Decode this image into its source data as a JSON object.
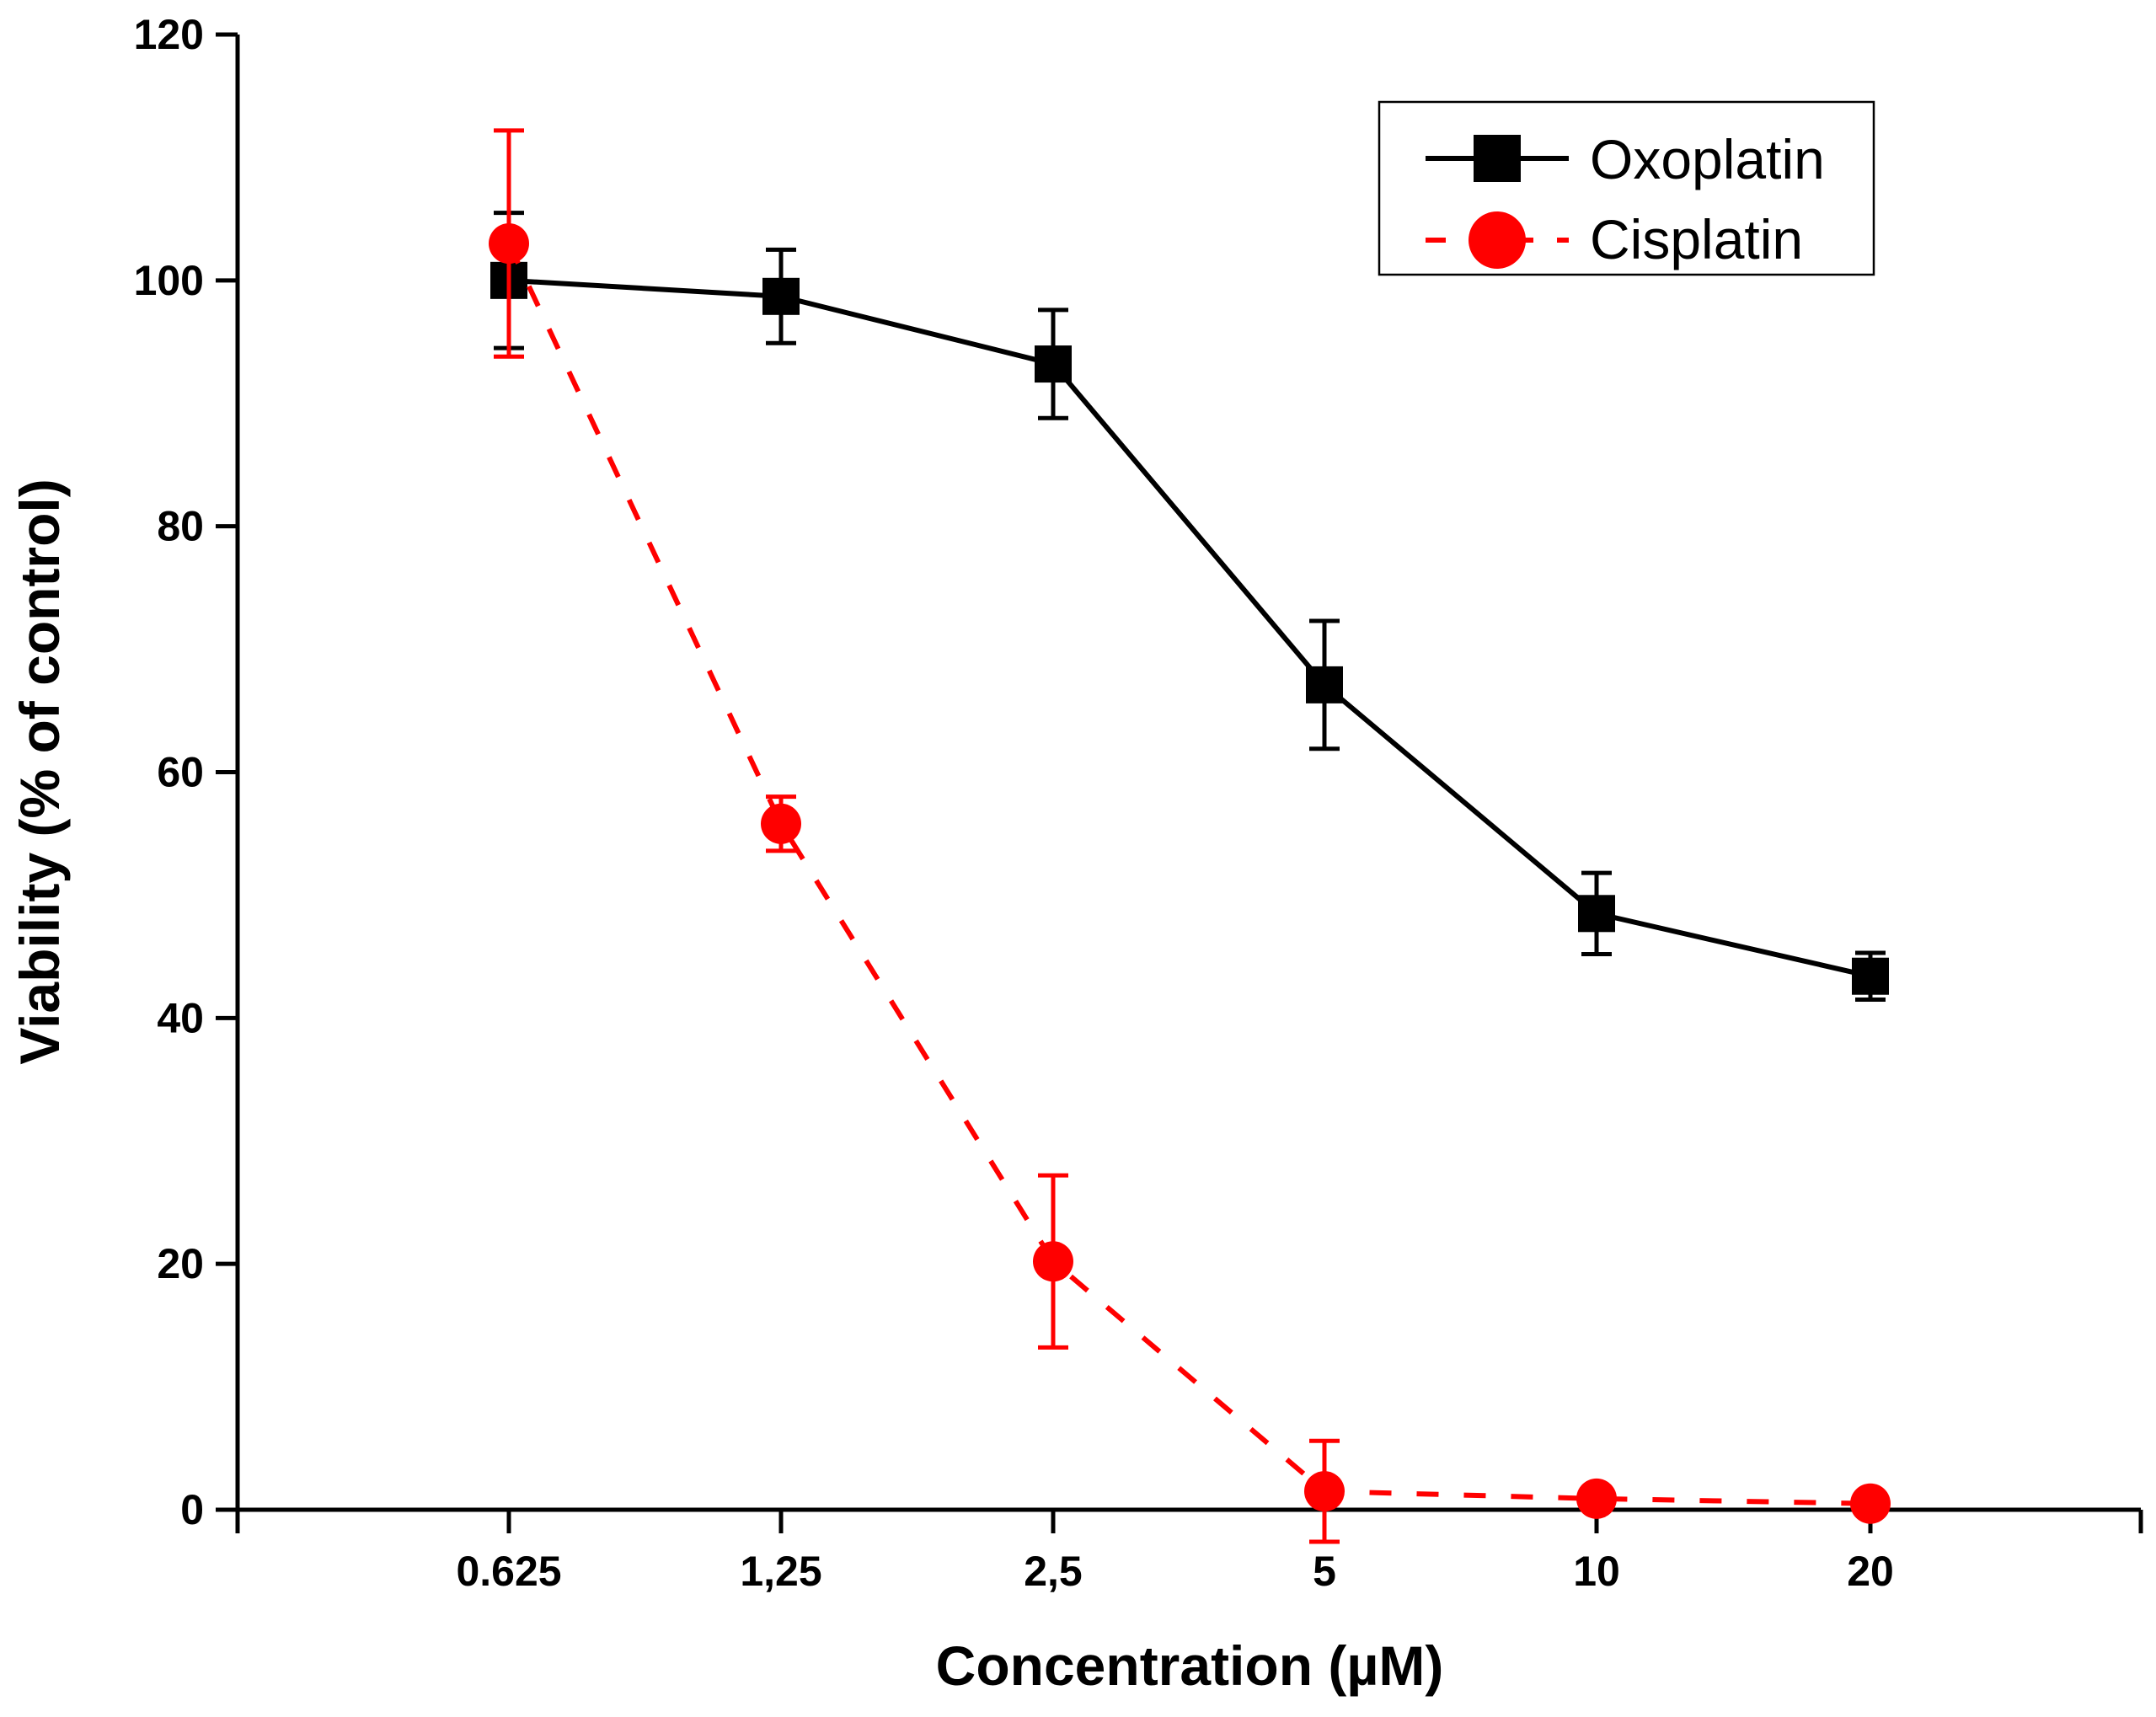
{
  "chart_data": {
    "type": "line",
    "title": "",
    "xlabel": "Concentration (µM)",
    "ylabel": "Viability (% of control)",
    "categories": [
      "0.625",
      "1,25",
      "2,5",
      "5",
      "10",
      "20"
    ],
    "ylim": [
      0,
      120
    ],
    "yticks": [
      "0",
      "20",
      "40",
      "60",
      "80",
      "100",
      "120"
    ],
    "grid": false,
    "legend_position": "top-right",
    "series": [
      {
        "name": "Oxoplatin",
        "color": "#000000",
        "marker": "square",
        "linestyle": "solid",
        "values": [
          100,
          98.7,
          93.2,
          67.1,
          48.5,
          43.4
        ],
        "errors": [
          5.5,
          3.8,
          4.4,
          5.2,
          3.3,
          1.9
        ]
      },
      {
        "name": "Cisplatin",
        "color": "#ff0000",
        "marker": "circle",
        "linestyle": "dashed",
        "values": [
          103,
          55.8,
          20.2,
          1.5,
          0.9,
          0.5
        ],
        "errors": [
          9.2,
          2.2,
          7.0,
          4.1,
          0.5,
          0.4
        ]
      }
    ]
  }
}
